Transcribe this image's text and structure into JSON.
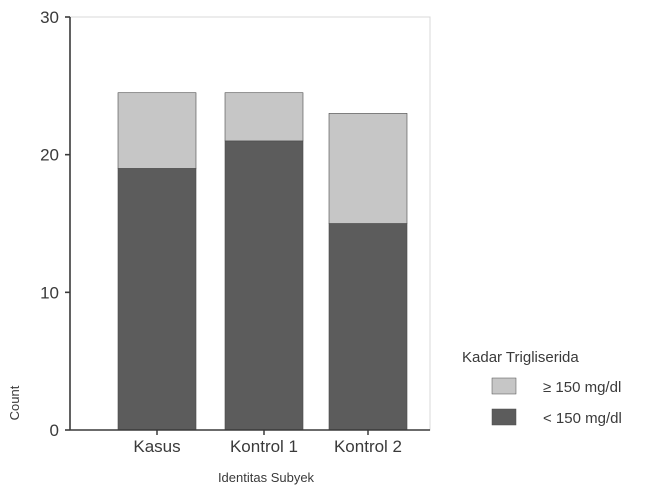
{
  "chart_data": {
    "type": "bar",
    "stacked": true,
    "categories": [
      "Kasus",
      "Kontrol 1",
      "Kontrol 2"
    ],
    "series": [
      {
        "name": "< 150 mg/dl",
        "values": [
          19,
          21,
          15
        ],
        "color": "#5c5c5c"
      },
      {
        "name": "≥ 150 mg/dl",
        "values": [
          5.5,
          3.5,
          8
        ],
        "color": "#c6c6c6"
      }
    ],
    "legend": {
      "title": "Kadar Trigliserida",
      "items": [
        "≥ 150 mg/dl",
        "< 150 mg/dl"
      ],
      "placement": "right"
    },
    "xlabel": "Identitas Subyek",
    "ylabel": "Count",
    "ylim": [
      0,
      30
    ],
    "yticks": [
      "0",
      "10",
      "20",
      "30"
    ],
    "grid": false,
    "colors": {
      "axis": "#3a3a3a",
      "plot_bg": "#ffffff"
    }
  }
}
